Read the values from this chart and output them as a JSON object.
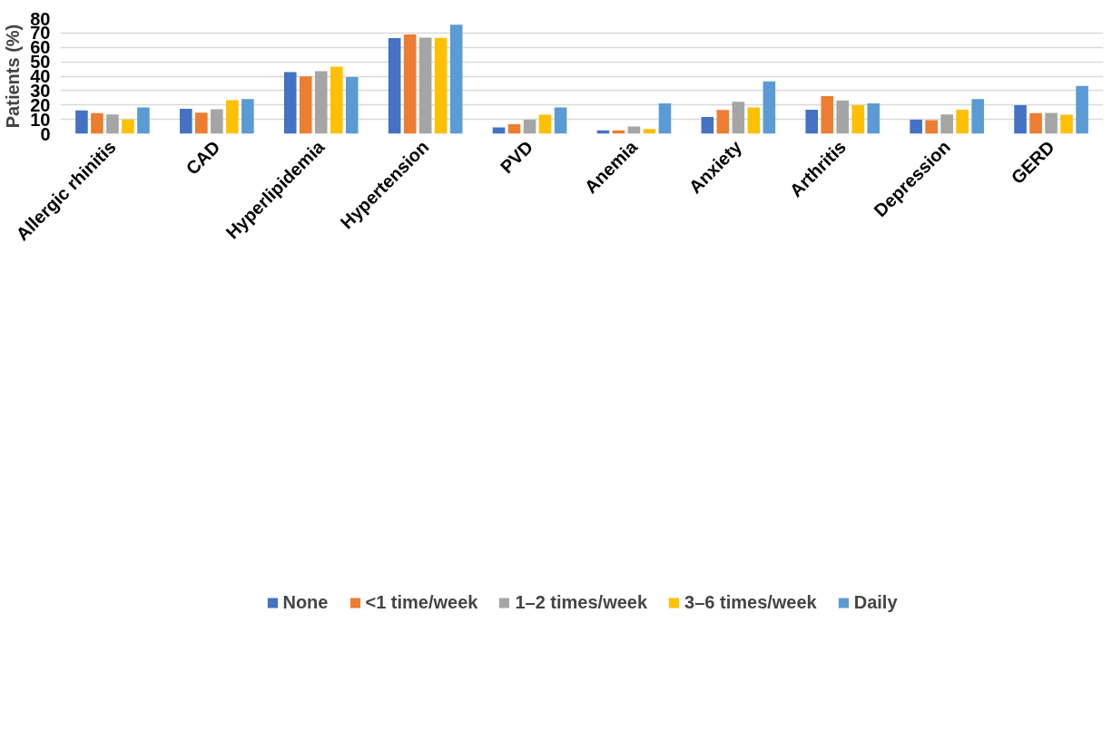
{
  "chart_data": {
    "type": "bar",
    "ylabel": "Patients (%)",
    "categories": [
      "Allergic rhinitis",
      "CAD",
      "Hyperlipidemia",
      "Hypertension",
      "PVD",
      "Anemia",
      "Anxiety",
      "Arthritis",
      "Depression",
      "GERD"
    ],
    "series": [
      {
        "name": "None",
        "color": "#4472c4",
        "values": [
          16.2,
          17.3,
          42.8,
          66.4,
          4.4,
          2.4,
          11.7,
          16.7,
          9.8,
          19.9
        ]
      },
      {
        "name": "<1 time/week",
        "color": "#ed7d31",
        "values": [
          14.4,
          14.7,
          39.9,
          69.0,
          6.6,
          2.4,
          16.5,
          26.2,
          9.4,
          14.4
        ]
      },
      {
        "name": "1–2 times/week",
        "color": "#a5a5a5",
        "values": [
          13.4,
          17.0,
          43.4,
          66.7,
          9.7,
          5.1,
          22.2,
          23.2,
          13.4,
          14.5
        ]
      },
      {
        "name": "3–6 times/week",
        "color": "#ffc000",
        "values": [
          9.9,
          23.3,
          46.6,
          66.6,
          13.2,
          3.3,
          18.2,
          19.9,
          16.7,
          13.2
        ]
      },
      {
        "name": "Daily",
        "color": "#5b9bd5",
        "values": [
          18.2,
          24.1,
          39.3,
          75.8,
          18.2,
          21.1,
          36.4,
          21.1,
          24.1,
          33.2
        ]
      }
    ],
    "ylim": [
      0,
      80
    ],
    "yticks": [
      0,
      10,
      20,
      30,
      40,
      50,
      60,
      70,
      80
    ],
    "grid": "y",
    "legend": "bottom"
  }
}
